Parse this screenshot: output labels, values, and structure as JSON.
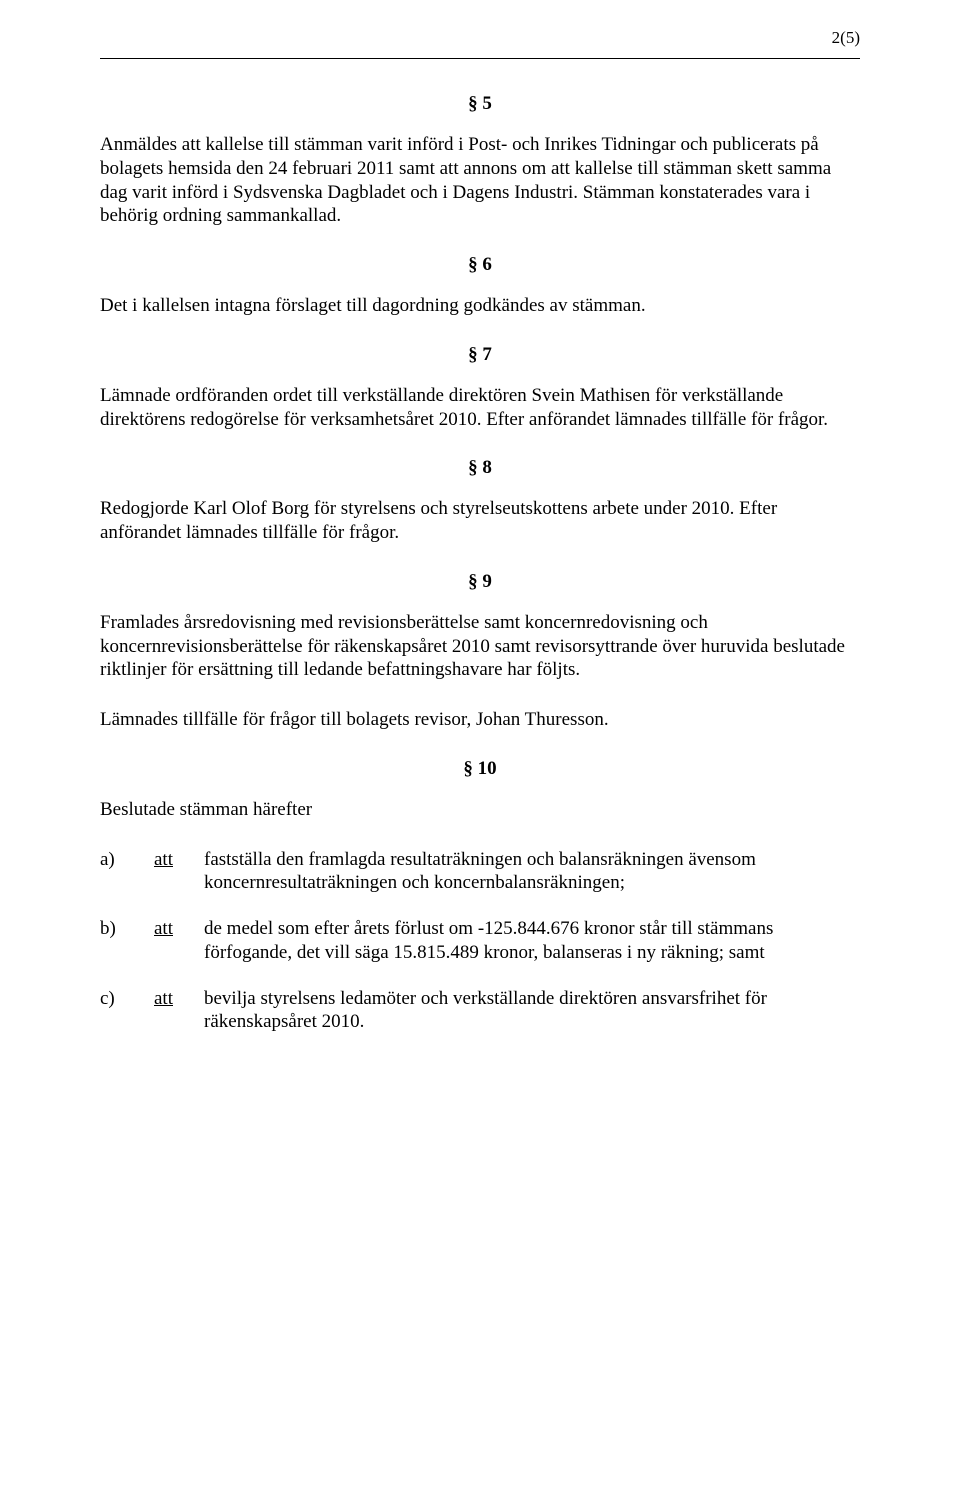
{
  "pageNumber": "2(5)",
  "sections": {
    "s5": {
      "num": "§ 5",
      "p1": "Anmäldes att kallelse till stämman varit införd i Post- och Inrikes Tidningar och publicerats på bolagets hemsida den 24 februari 2011 samt att annons om att kallelse till stämman skett samma dag varit införd i Sydsvenska Dagbladet och i Dagens Industri. Stämman konstaterades vara i behörig ordning sammankallad."
    },
    "s6": {
      "num": "§ 6",
      "p1": "Det i kallelsen intagna förslaget till dagordning godkändes av stämman."
    },
    "s7": {
      "num": "§ 7",
      "p1": "Lämnade ordföranden ordet till verkställande direktören Svein Mathisen för verkställande direktörens redogörelse för verksamhetsåret 2010. Efter anförandet lämnades tillfälle för frågor."
    },
    "s8": {
      "num": "§ 8",
      "p1": "Redogjorde Karl Olof Borg för styrelsens och styrelseutskottens arbete under 2010. Efter anförandet lämnades tillfälle för frågor."
    },
    "s9": {
      "num": "§ 9",
      "p1": "Framlades årsredovisning med revisionsberättelse samt koncernredovisning och koncernrevisionsberättelse för räkenskapsåret 2010 samt revisorsyttrande över huruvida beslutade riktlinjer för ersättning till ledande befattningshavare har följts.",
      "p2": "Lämnades tillfälle för frågor till bolagets revisor, Johan Thuresson."
    },
    "s10": {
      "num": "§ 10",
      "intro": "Beslutade stämman härefter",
      "items": [
        {
          "letter": "a)",
          "att": "att",
          "text": "fastställa den framlagda resultaträkningen och balansräkningen ävensom koncernresultaträkningen och koncernbalansräkningen;"
        },
        {
          "letter": "b)",
          "att": "att",
          "text": "de medel som efter årets förlust om -125.844.676 kronor står till stämmans förfogande, det vill säga 15.815.489 kronor, balanseras i ny räkning; samt"
        },
        {
          "letter": "c)",
          "att": "att",
          "text": "bevilja styrelsens ledamöter och verkställande direktören ansvarsfrihet för räkenskapsåret 2010."
        }
      ]
    }
  }
}
